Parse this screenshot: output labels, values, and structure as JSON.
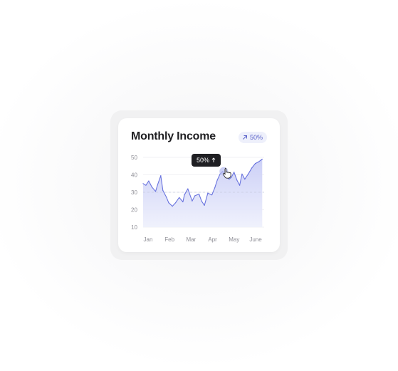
{
  "card": {
    "title": "Monthly Income",
    "badge": {
      "icon": "arrow-up-right-icon",
      "value": "50%"
    }
  },
  "tooltip": {
    "value": "50%",
    "icon": "arrow-up-icon"
  },
  "chart_data": {
    "type": "area",
    "title": "",
    "xlabel": "",
    "ylabel": "",
    "ylim": [
      10,
      50
    ],
    "yticks": [
      10,
      20,
      30,
      40,
      50
    ],
    "categories": [
      "Jan",
      "Feb",
      "Mar",
      "Apr",
      "May",
      "June"
    ],
    "legend": "none",
    "grid": true,
    "reference_line": 30,
    "highlight": {
      "x": 3.75,
      "y": 42
    },
    "colors": {
      "line": "#6973de",
      "fill_top": "#c9cdf6",
      "fill_bottom": "#eef0fc",
      "highlight": "#b9bff2"
    },
    "series": [
      {
        "x": [
          0,
          0.13,
          0.26,
          0.41,
          0.58,
          0.68,
          0.82,
          0.92,
          1.09,
          1.19,
          1.36,
          1.51,
          1.68,
          1.85,
          1.92,
          2.08,
          2.28,
          2.41,
          2.6,
          2.72,
          2.85,
          3.01,
          3.2,
          3.33,
          3.45,
          3.58,
          3.7,
          3.85,
          4.0,
          4.1,
          4.23,
          4.36,
          4.49,
          4.6,
          4.73,
          4.89,
          5.06,
          5.22,
          5.38,
          5.54
        ],
        "y": [
          35,
          34,
          36.5,
          33,
          30.5,
          34.5,
          39.5,
          31,
          27,
          24,
          22,
          24,
          27,
          24.5,
          28.5,
          32,
          25,
          28,
          29,
          25,
          22.5,
          29.5,
          28.5,
          32.5,
          37,
          40.5,
          42,
          39,
          37.5,
          38.5,
          41.5,
          37,
          34,
          40.5,
          37.5,
          40.5,
          44,
          46.5,
          47.5,
          49
        ]
      }
    ]
  }
}
